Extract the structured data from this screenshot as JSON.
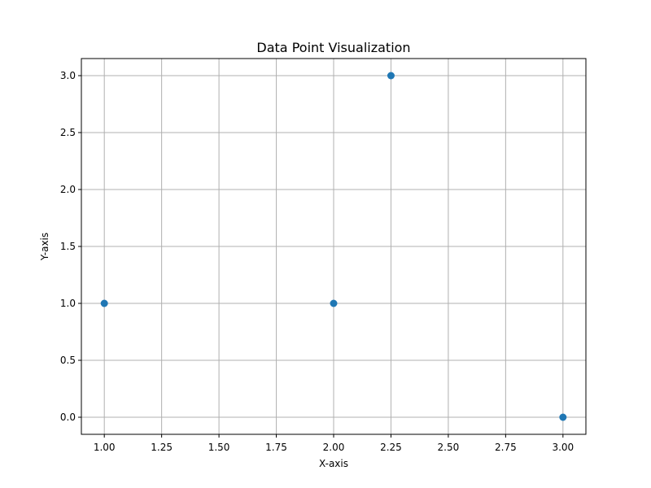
{
  "chart_data": {
    "type": "scatter",
    "title": "Data Point Visualization",
    "xlabel": "X-axis",
    "ylabel": "Y-axis",
    "xlim": [
      0.9,
      3.1
    ],
    "ylim": [
      -0.15,
      3.15
    ],
    "xticks": [
      1.0,
      1.25,
      1.5,
      1.75,
      2.0,
      2.25,
      2.5,
      2.75,
      3.0
    ],
    "xtick_labels": [
      "1.00",
      "1.25",
      "1.50",
      "1.75",
      "2.00",
      "2.25",
      "2.50",
      "2.75",
      "3.00"
    ],
    "yticks": [
      0.0,
      0.5,
      1.0,
      1.5,
      2.0,
      2.5,
      3.0
    ],
    "ytick_labels": [
      "0.0",
      "0.5",
      "1.0",
      "1.5",
      "2.0",
      "2.5",
      "3.0"
    ],
    "grid": true,
    "series": [
      {
        "color": "#1f77b4",
        "points": [
          {
            "x": 1.0,
            "y": 1.0
          },
          {
            "x": 2.0,
            "y": 1.0
          },
          {
            "x": 2.25,
            "y": 3.0
          },
          {
            "x": 3.0,
            "y": 0.0
          }
        ]
      }
    ]
  }
}
